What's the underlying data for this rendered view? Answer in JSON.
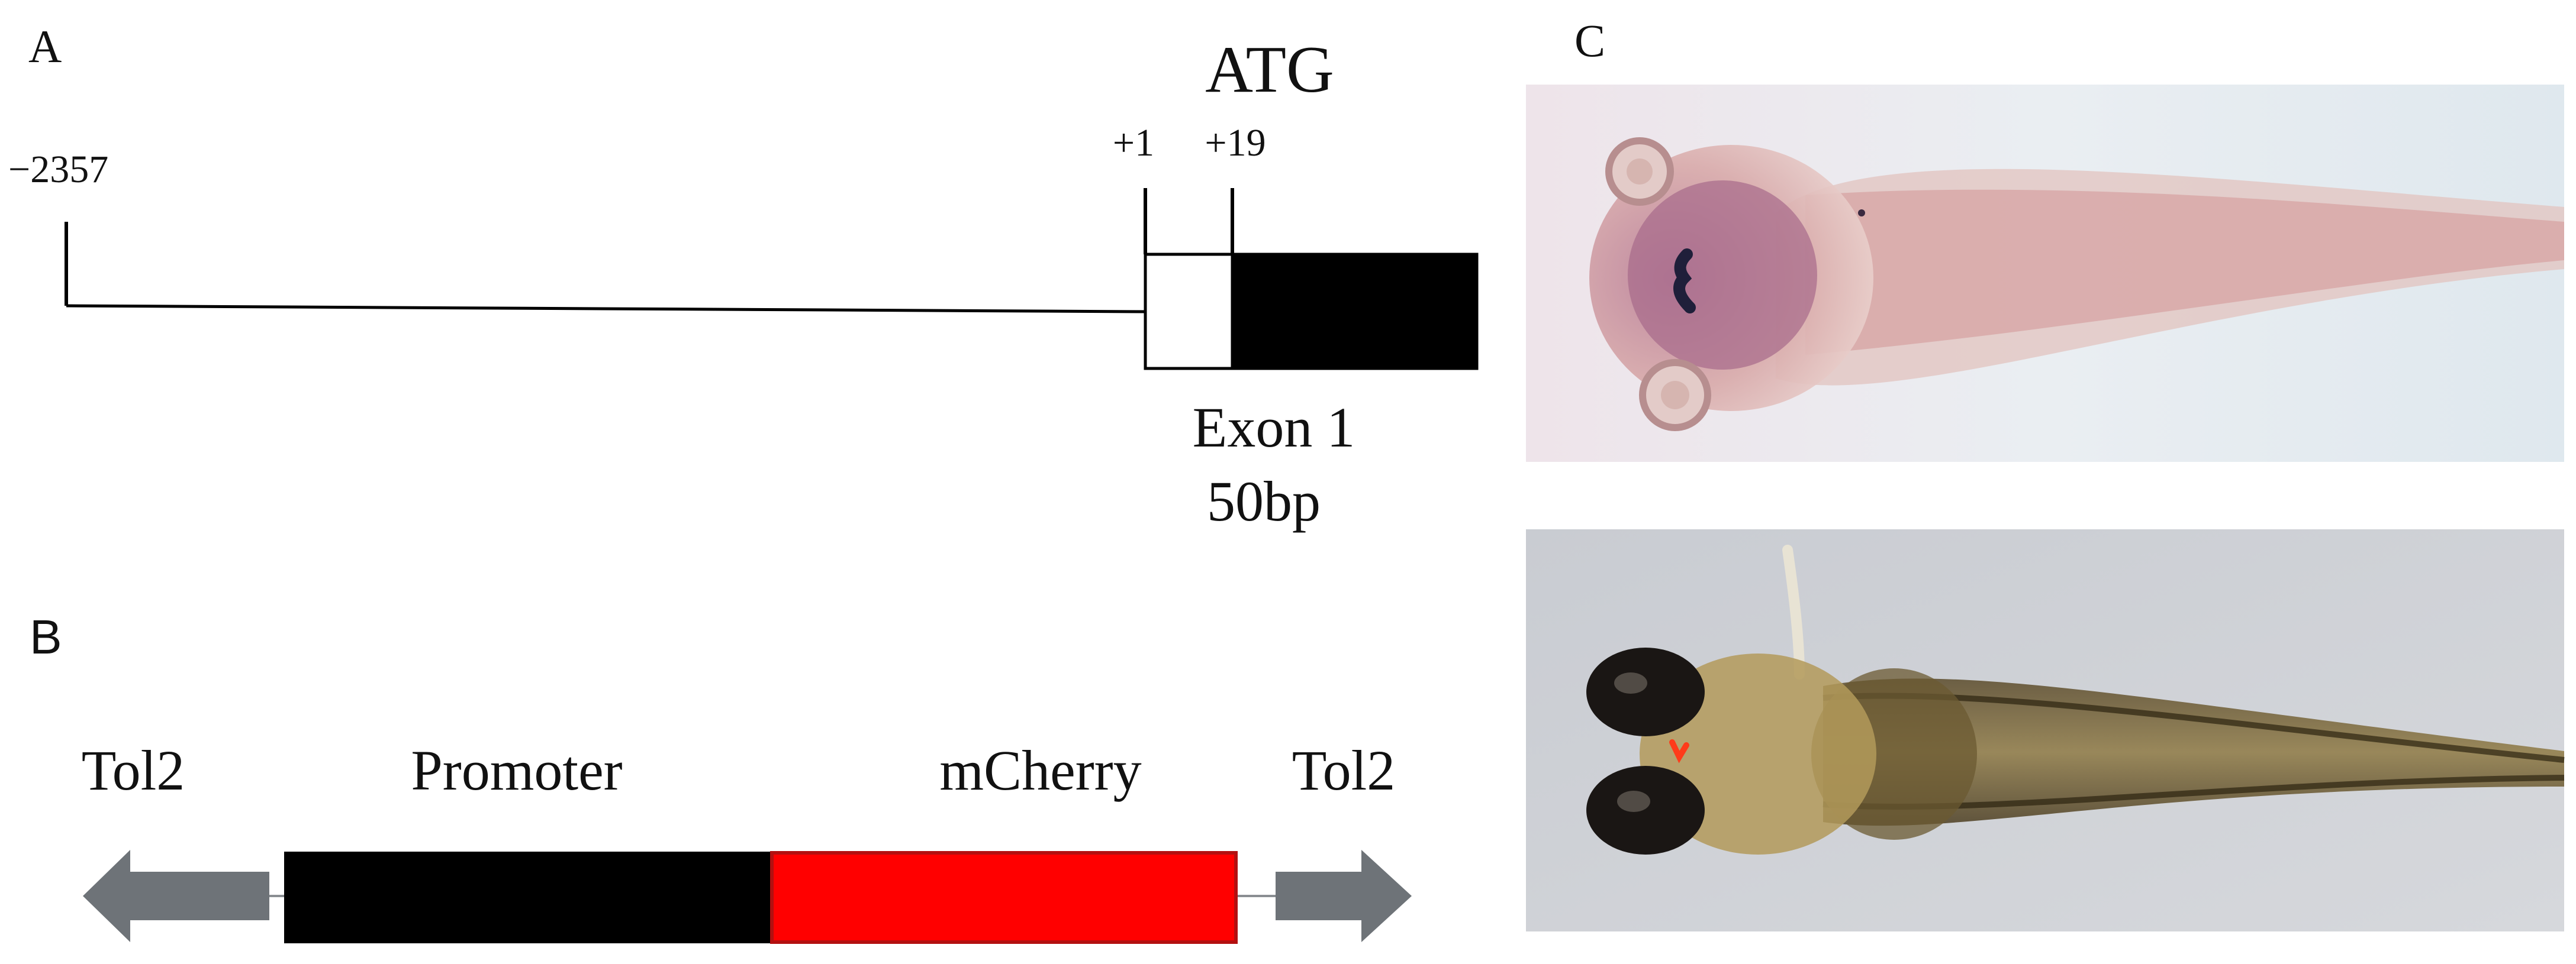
{
  "panels": {
    "a": {
      "label": "A",
      "upstream_position": "−2357",
      "tss_position": "+1",
      "atg_position": "+19",
      "atg_label": "ATG",
      "exon_label": "Exon 1",
      "exon_size": "50bp",
      "colors": {
        "line": "#000000",
        "coding": "#000000",
        "utr": "#ffffff"
      }
    },
    "b": {
      "label": "B",
      "left_element": "Tol2",
      "promoter_label": "Promoter",
      "reporter_label": "mCherry",
      "right_element": "Tol2",
      "colors": {
        "tol2": "#6e7378",
        "promoter": "#000000",
        "reporter": "#ff0000",
        "reporter_border": "#b31010"
      }
    },
    "c": {
      "label": "C",
      "images": [
        {
          "name": "in-situ-hybridization-larva",
          "description": "dorsal view, purple stain"
        },
        {
          "name": "brightfield-larva-mcherry",
          "description": "dorsal view, red fluorescence in head"
        }
      ]
    }
  }
}
